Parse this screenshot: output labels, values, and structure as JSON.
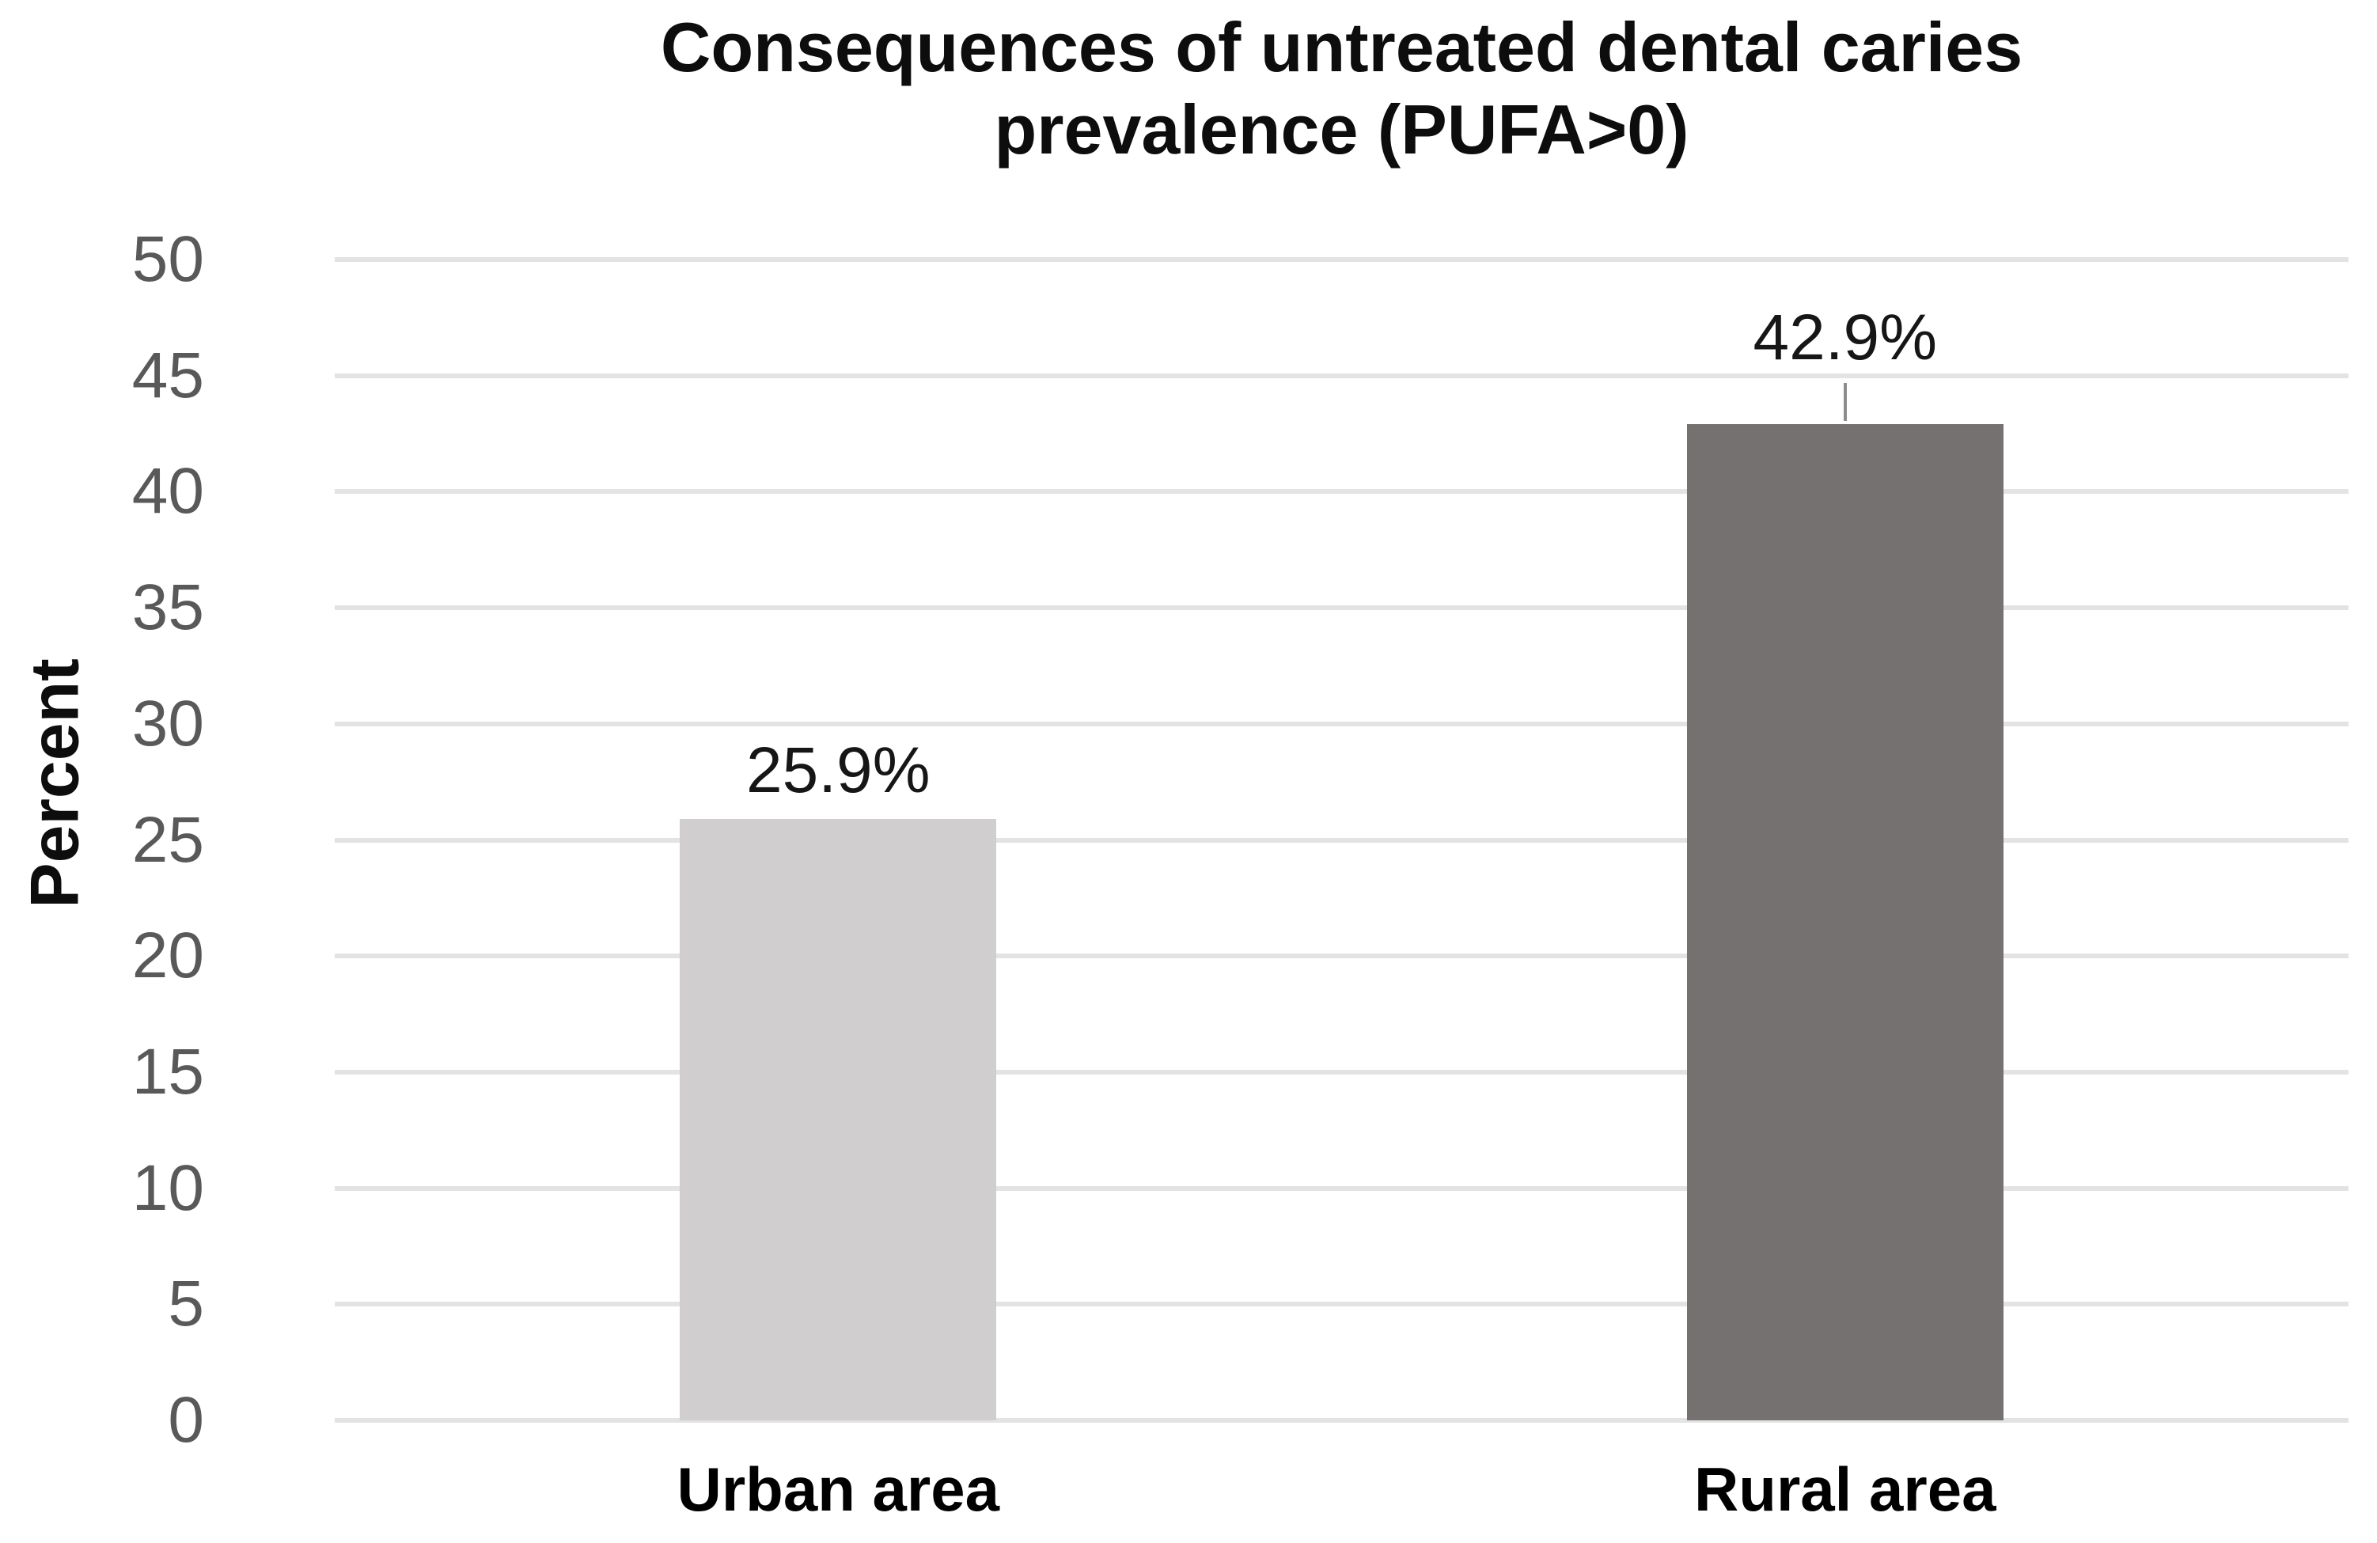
{
  "chart_data": {
    "type": "bar",
    "title": "Consequences of untreated dental caries prevalence (PUFA>0)",
    "title_lines": [
      "Consequences of untreated dental caries",
      "prevalence (PUFA>0)"
    ],
    "ylabel": "Percent",
    "xlabel": "",
    "categories": [
      "Urban area",
      "Rural area"
    ],
    "values": [
      25.9,
      42.9
    ],
    "bar_labels": [
      "25.9%",
      "42.9%"
    ],
    "bar_colors": [
      "#d0cece",
      "#767171"
    ],
    "leader_lines": [
      false,
      true
    ],
    "ylim": [
      0,
      50
    ],
    "yticks": [
      0,
      5,
      10,
      15,
      20,
      25,
      30,
      35,
      40,
      45,
      50
    ],
    "grid": "horizontal",
    "legend": "none"
  },
  "colors": {
    "background": "#ffffff",
    "gridline": "#e4e3e3",
    "tick_text": "#595959",
    "title_text": "#0d0d0d",
    "bar_urban": "#d0cece",
    "bar_rural": "#767171"
  }
}
